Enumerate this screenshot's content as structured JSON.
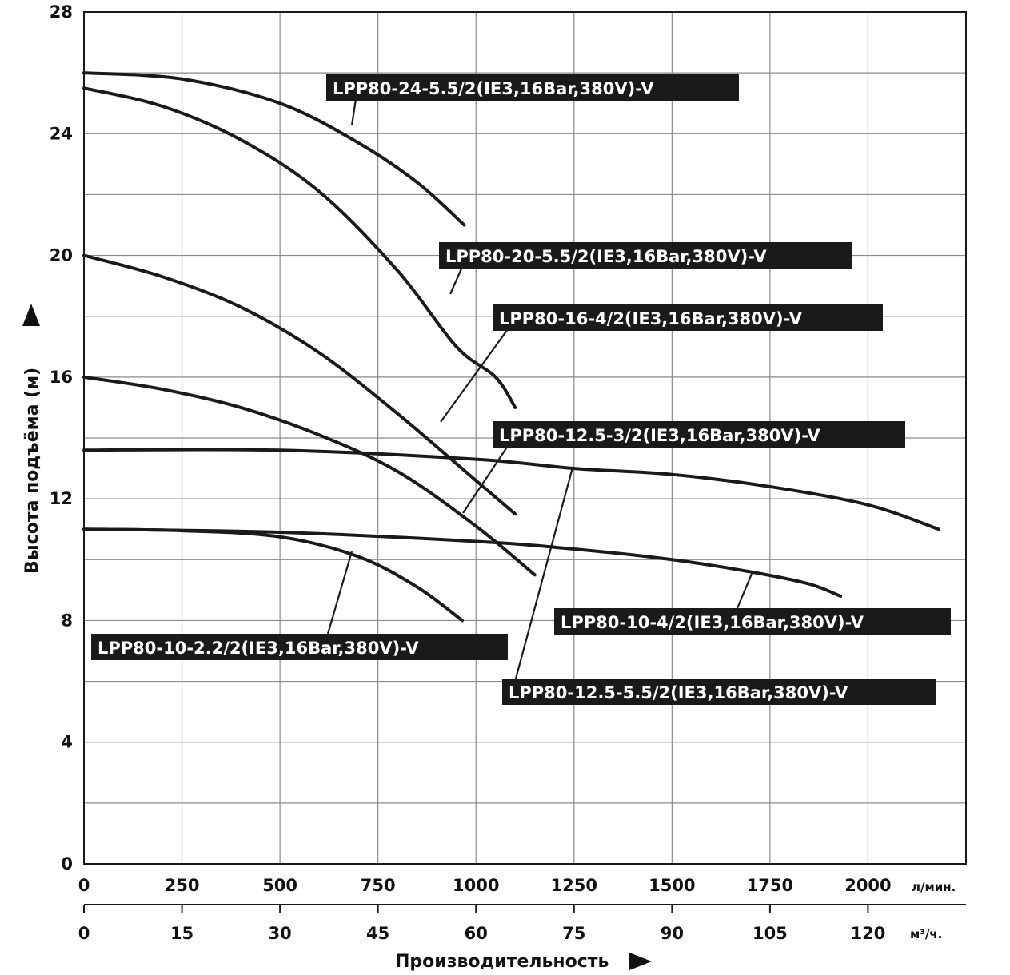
{
  "chart_data": {
    "type": "line",
    "ylabel": "Высота подъёма (м)",
    "xlabel": "Производительность",
    "ylim": [
      0,
      28
    ],
    "xlim": [
      0,
      2250
    ],
    "yticks": [
      "0",
      "4",
      "8",
      "12",
      "16",
      "20",
      "24",
      "28"
    ],
    "yticks_values": [
      0,
      4,
      8,
      12,
      16,
      20,
      24,
      28
    ],
    "x_primary": {
      "unit": "л/мин.",
      "ticks": [
        "0",
        "250",
        "500",
        "750",
        "1000",
        "1250",
        "1500",
        "1750",
        "2000"
      ],
      "values": [
        0,
        250,
        500,
        750,
        1000,
        1250,
        1500,
        1750,
        2000
      ]
    },
    "x_secondary": {
      "unit": "м³/ч.",
      "ticks": [
        "0",
        "15",
        "30",
        "45",
        "60",
        "75",
        "90",
        "105",
        "120"
      ],
      "values": [
        0,
        15,
        30,
        45,
        60,
        75,
        90,
        105,
        120
      ]
    },
    "series": [
      {
        "name": "LPP80-24-5.5/2(IE3,16Bar,380V)-V",
        "x": [
          0,
          250,
          500,
          700,
          850,
          970
        ],
        "y": [
          26.0,
          25.8,
          25.0,
          23.7,
          22.4,
          21.0
        ]
      },
      {
        "name": "LPP80-20-5.5/2(IE3,16Bar,380V)-V",
        "x": [
          0,
          200,
          400,
          600,
          800,
          950,
          1050,
          1100
        ],
        "y": [
          25.5,
          24.9,
          23.8,
          22.1,
          19.5,
          17.0,
          16.0,
          15.0
        ]
      },
      {
        "name": "LPP80-16-4/2(IE3,16Bar,380V)-V",
        "x": [
          0,
          200,
          400,
          600,
          800,
          1000,
          1100
        ],
        "y": [
          20.0,
          19.3,
          18.3,
          16.8,
          14.8,
          12.6,
          11.5
        ]
      },
      {
        "name": "LPP80-12.5-3/2(IE3,16Bar,380V)-V",
        "x": [
          0,
          200,
          400,
          600,
          800,
          1000,
          1150
        ],
        "y": [
          16.0,
          15.6,
          15.0,
          14.1,
          12.9,
          11.1,
          9.5
        ]
      },
      {
        "name": "LPP80-12.5-5.5/2(IE3,16Bar,380V)-V",
        "x": [
          0,
          500,
          1000,
          1250,
          1500,
          1750,
          2000,
          2180
        ],
        "y": [
          13.6,
          13.6,
          13.3,
          13.0,
          12.8,
          12.4,
          11.8,
          11.0
        ]
      },
      {
        "name": "LPP80-10-4/2(IE3,16Bar,380V)-V",
        "x": [
          0,
          500,
          1000,
          1250,
          1500,
          1700,
          1850,
          1930
        ],
        "y": [
          11.0,
          10.9,
          10.6,
          10.35,
          10.0,
          9.6,
          9.2,
          8.8
        ]
      },
      {
        "name": "LPP80-10-2.2/2(IE3,16Bar,380V)-V",
        "x": [
          0,
          250,
          500,
          700,
          850,
          965
        ],
        "y": [
          11.0,
          10.95,
          10.75,
          10.1,
          9.1,
          8.0
        ]
      }
    ],
    "labels": [
      {
        "text": "LPP80-24-5.5/2(IE3,16Bar,380V)-V",
        "series": 0
      },
      {
        "text": "LPP80-20-5.5/2(IE3,16Bar,380V)-V",
        "series": 1
      },
      {
        "text": "LPP80-16-4/2(IE3,16Bar,380V)-V",
        "series": 2
      },
      {
        "text": "LPP80-12.5-3/2(IE3,16Bar,380V)-V",
        "series": 3
      },
      {
        "text": "LPP80-12.5-5.5/2(IE3,16Bar,380V)-V",
        "series": 4
      },
      {
        "text": "LPP80-10-4/2(IE3,16Bar,380V)-V",
        "series": 5
      },
      {
        "text": "LPP80-10-2.2/2(IE3,16Bar,380V)-V",
        "series": 6
      }
    ]
  }
}
